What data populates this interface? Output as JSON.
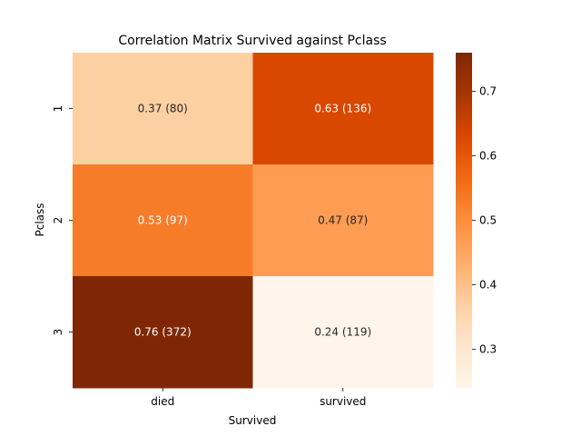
{
  "chart_data": {
    "type": "heatmap",
    "title": "Correlation Matrix Survived against Pclass",
    "xlabel": "Survived",
    "ylabel": "Pclass",
    "x_categories": [
      "died",
      "survived"
    ],
    "y_categories": [
      "1",
      "2",
      "3"
    ],
    "values": [
      [
        0.37,
        0.63
      ],
      [
        0.53,
        0.47
      ],
      [
        0.76,
        0.24
      ]
    ],
    "annotations": [
      [
        "0.37 (80)",
        "0.63 (136)"
      ],
      [
        "0.53 (97)",
        "0.47 (87)"
      ],
      [
        "0.76 (372)",
        "0.24 (119)"
      ]
    ],
    "colormap": "Oranges",
    "colorbar": {
      "range": [
        0.24,
        0.76
      ],
      "ticks": [
        "0.3",
        "0.4",
        "0.5",
        "0.6",
        "0.7"
      ]
    }
  }
}
